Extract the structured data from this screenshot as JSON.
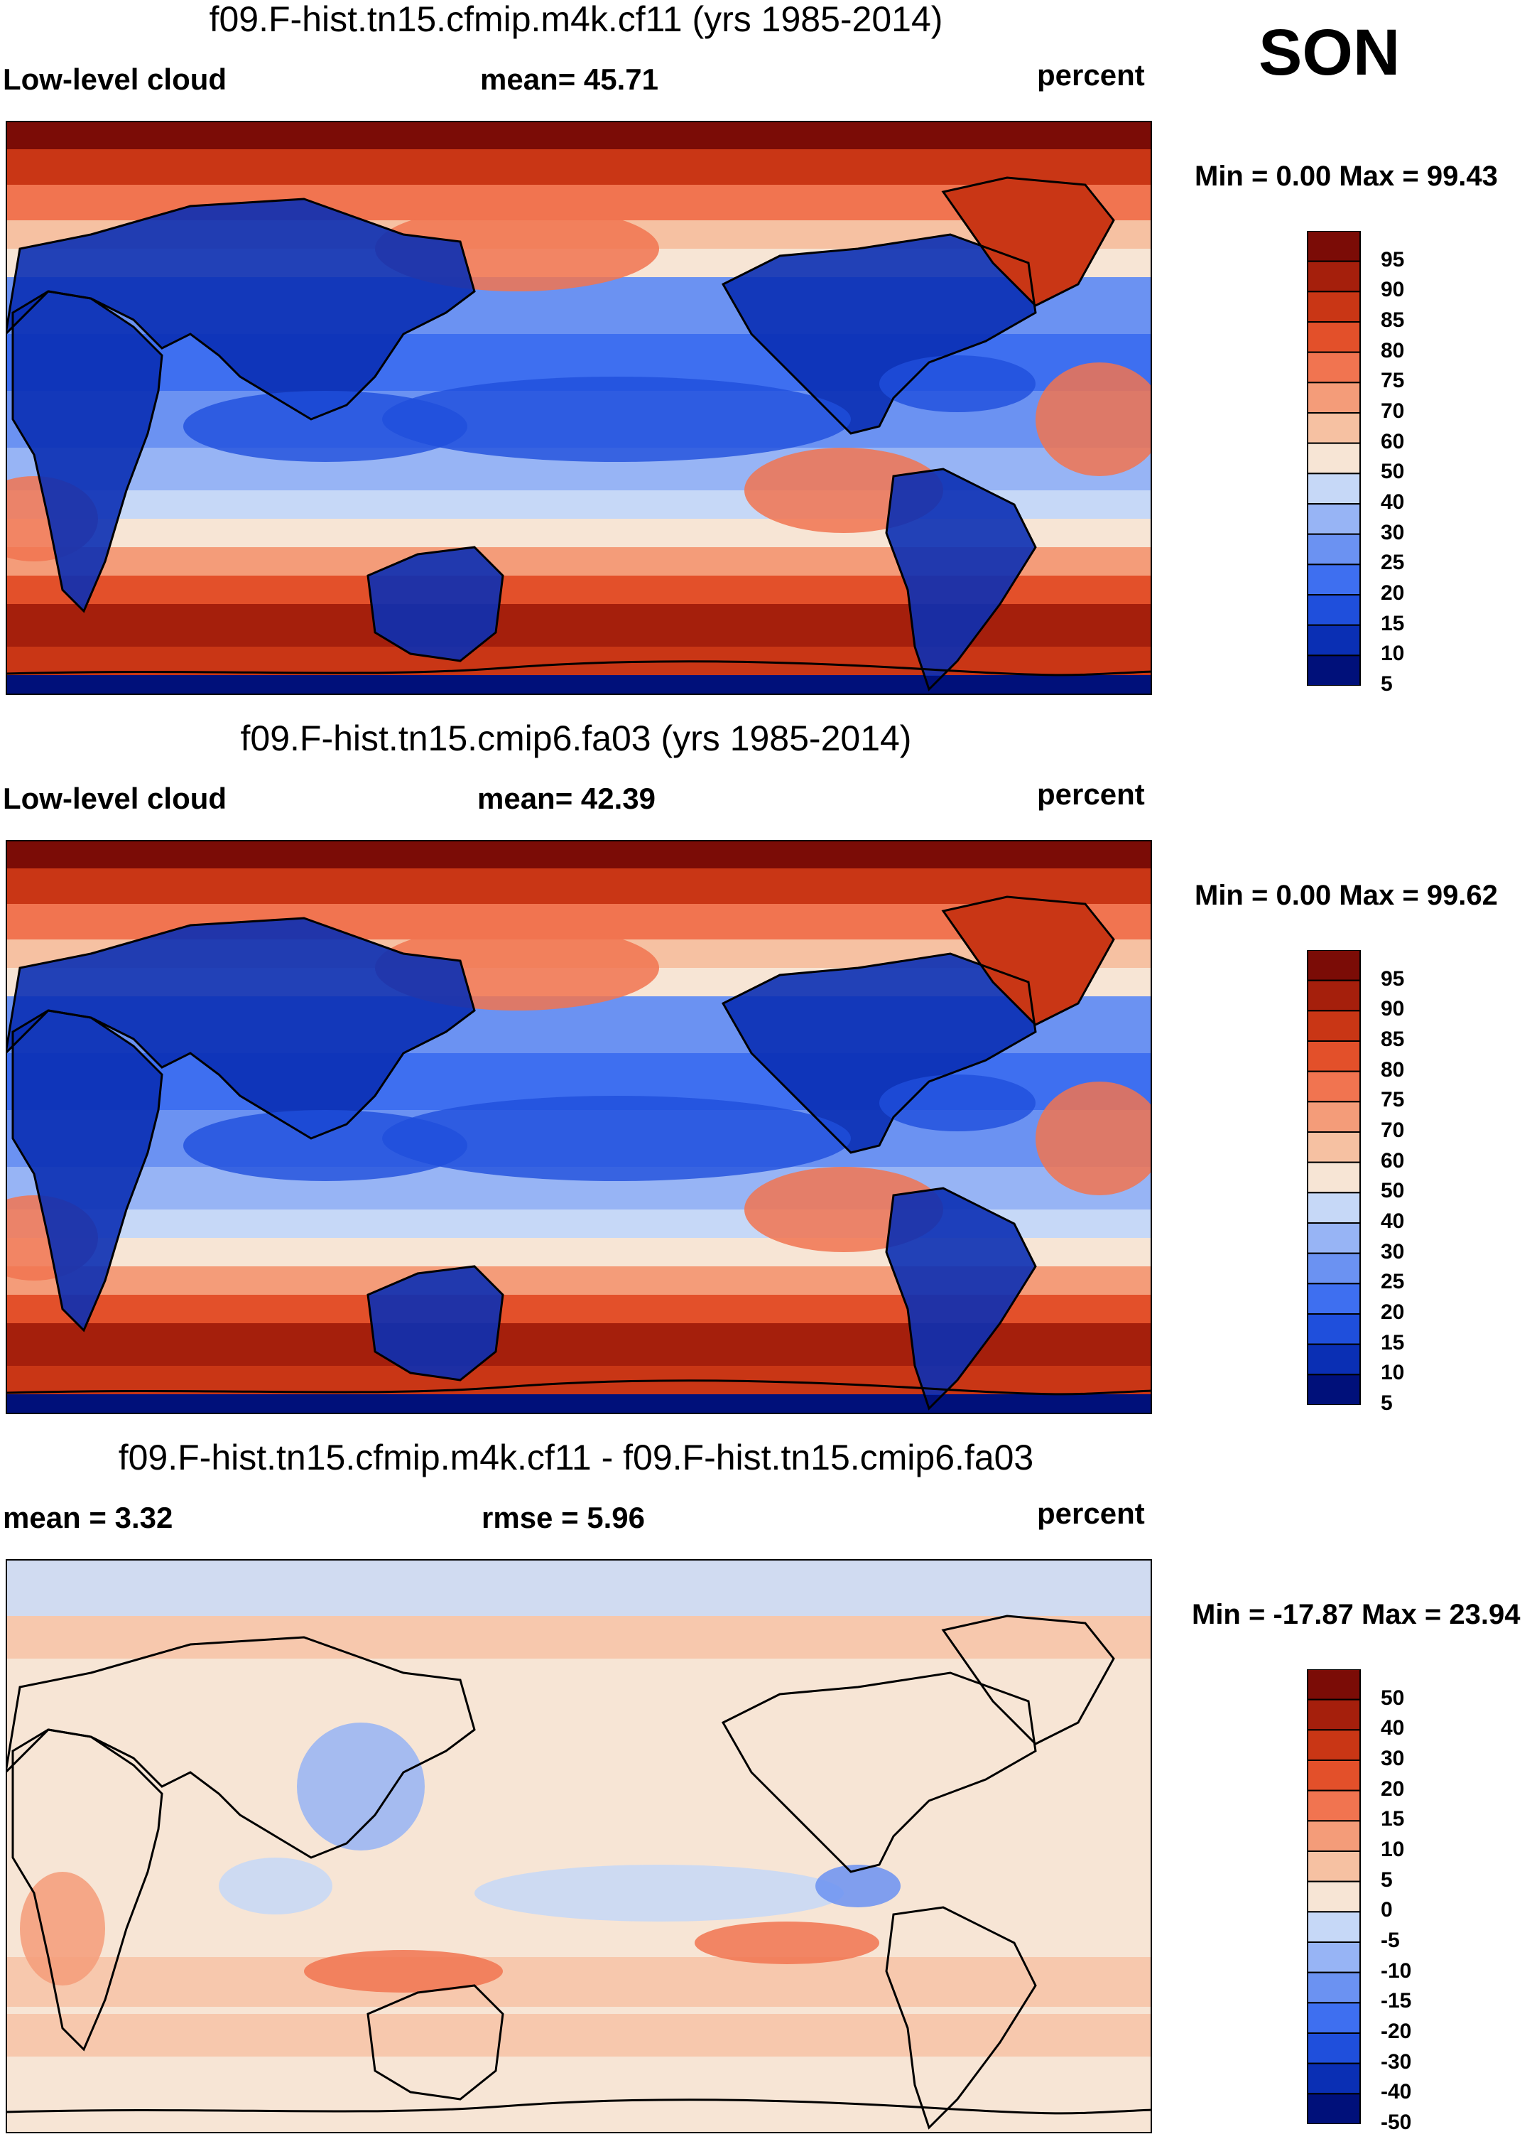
{
  "season": "SON",
  "colors": {
    "abs_scale": [
      "#00107a",
      "#0a2fb4",
      "#1f4fdc",
      "#3e6ff0",
      "#6b92f2",
      "#97b4f5",
      "#c6d8f7",
      "#f7e5d5",
      "#f6c1a2",
      "#f49c79",
      "#f17450",
      "#e3502a",
      "#c93615",
      "#a51f0c",
      "#7b0c06"
    ],
    "diff_scale": [
      "#00107a",
      "#0a2fb4",
      "#1f4fdc",
      "#3e6ff0",
      "#6b92f2",
      "#97b4f5",
      "#c6d8f7",
      "#f7e5d5",
      "#f6c1a2",
      "#f49c79",
      "#f17450",
      "#e3502a",
      "#c93615",
      "#a51f0c",
      "#7b0c06"
    ],
    "coast": "#000000"
  },
  "chart_data": [
    {
      "type": "heatmap",
      "title": "f09.F-hist.tn15.cfmip.m4k.cf11 (yrs 1985-2014)",
      "left_label": "Low-level cloud",
      "center_label": "mean=  45.71",
      "right_label": "percent",
      "minmax": "Min =   0.00 Max =  99.43",
      "mean": 45.71,
      "min": 0.0,
      "max": 99.43,
      "colorbar_levels": [
        "95",
        "90",
        "85",
        "80",
        "75",
        "70",
        "60",
        "50",
        "40",
        "30",
        "25",
        "20",
        "15",
        "10",
        "5"
      ],
      "units": "percent"
    },
    {
      "type": "heatmap",
      "title": "f09.F-hist.tn15.cmip6.fa03 (yrs 1985-2014)",
      "left_label": "Low-level cloud",
      "center_label": "mean=  42.39",
      "right_label": "percent",
      "minmax": "Min =   0.00 Max =  99.62",
      "mean": 42.39,
      "min": 0.0,
      "max": 99.62,
      "colorbar_levels": [
        "95",
        "90",
        "85",
        "80",
        "75",
        "70",
        "60",
        "50",
        "40",
        "30",
        "25",
        "20",
        "15",
        "10",
        "5"
      ],
      "units": "percent"
    },
    {
      "type": "heatmap",
      "title": "f09.F-hist.tn15.cfmip.m4k.cf11 - f09.F-hist.tn15.cmip6.fa03",
      "left_label": "mean =   3.32",
      "center_label": "rmse =   5.96",
      "right_label": "percent",
      "minmax": "Min = -17.87 Max =  23.94",
      "mean": 3.32,
      "rmse": 5.96,
      "min": -17.87,
      "max": 23.94,
      "colorbar_levels": [
        "50",
        "40",
        "30",
        "20",
        "15",
        "10",
        "5",
        "0",
        "-5",
        "-10",
        "-15",
        "-20",
        "-30",
        "-40",
        "-50"
      ],
      "units": "percent"
    }
  ]
}
